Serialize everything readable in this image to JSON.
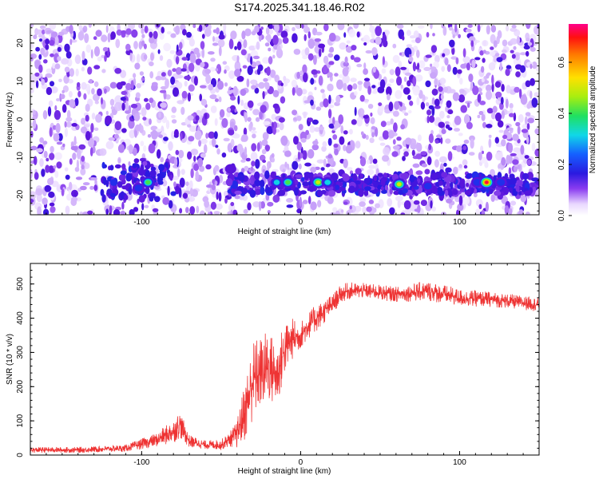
{
  "title": "S174.2025.341.18.46.R02",
  "chart_data": [
    {
      "type": "heatmap",
      "panel": "top",
      "xlabel": "Height of straight line (km)",
      "ylabel": "Frequency (Hz)",
      "xlim": [
        -170,
        150
      ],
      "ylim": [
        -25,
        25
      ],
      "xticks": [
        -100,
        0,
        100
      ],
      "yticks": [
        -20,
        -10,
        0,
        10,
        20
      ],
      "colorbar": {
        "label": "Normalized spectral amplitude",
        "range": [
          0,
          0.75
        ],
        "ticks": [
          0.0,
          0.2,
          0.4,
          0.6
        ],
        "tick_labels": [
          "0.0",
          "0.2",
          "0.4",
          "0.6"
        ]
      },
      "features": [
        {
          "description": "broadband noise blobs",
          "x_range": [
            -170,
            150
          ],
          "y_range": [
            -25,
            25
          ],
          "amplitude": 0.08
        },
        {
          "description": "persistent band near -17 Hz",
          "x_range": [
            -45,
            150
          ],
          "y_center": -17,
          "amplitude": 0.12
        },
        {
          "description": "gap in signal",
          "x_range": [
            -8,
            -5
          ],
          "y_range": [
            -12,
            25
          ]
        }
      ],
      "peaks": [
        {
          "x": -102,
          "y": -18,
          "amp": 0.28
        },
        {
          "x": -96,
          "y": -16.5,
          "amp": 0.45
        },
        {
          "x": -44,
          "y": -13,
          "amp": 0.2
        },
        {
          "x": -15,
          "y": -16.5,
          "amp": 0.32
        },
        {
          "x": -8,
          "y": -16.5,
          "amp": 0.5
        },
        {
          "x": 11,
          "y": -16.5,
          "amp": 0.6
        },
        {
          "x": 17,
          "y": -16.5,
          "amp": 0.35
        },
        {
          "x": 62,
          "y": -17,
          "amp": 0.55
        },
        {
          "x": 80,
          "y": -17.5,
          "amp": 0.25
        },
        {
          "x": 111,
          "y": -16.5,
          "amp": 0.3
        },
        {
          "x": 117,
          "y": -16.5,
          "amp": 0.72
        },
        {
          "x": 126,
          "y": -16.5,
          "amp": 0.28
        }
      ]
    },
    {
      "type": "line",
      "panel": "bottom",
      "xlabel": "Height of straight line (km)",
      "ylabel": "SNR (10 * v/v)",
      "xlim": [
        -170,
        150
      ],
      "ylim": [
        0,
        560
      ],
      "xticks": [
        -100,
        0,
        100
      ],
      "yticks": [
        0,
        100,
        200,
        300,
        400,
        500
      ],
      "series": [
        {
          "name": "SNR",
          "color": "#ee3333",
          "x": [
            -170,
            -140,
            -110,
            -90,
            -80,
            -76,
            -70,
            -60,
            -50,
            -45,
            -40,
            -35,
            -30,
            -25,
            -20,
            -15,
            -10,
            -5,
            0,
            5,
            10,
            15,
            20,
            25,
            30,
            40,
            60,
            80,
            100,
            120,
            140,
            150
          ],
          "y": [
            15,
            15,
            20,
            45,
            70,
            90,
            40,
            30,
            30,
            45,
            60,
            130,
            220,
            240,
            260,
            230,
            310,
            340,
            350,
            380,
            400,
            420,
            440,
            470,
            480,
            480,
            470,
            480,
            460,
            455,
            445,
            440
          ],
          "noise": [
            8,
            8,
            10,
            20,
            35,
            40,
            18,
            12,
            15,
            20,
            40,
            90,
            120,
            110,
            110,
            100,
            80,
            60,
            40,
            40,
            40,
            35,
            30,
            25,
            25,
            22,
            22,
            30,
            25,
            22,
            20,
            20
          ]
        }
      ]
    }
  ]
}
